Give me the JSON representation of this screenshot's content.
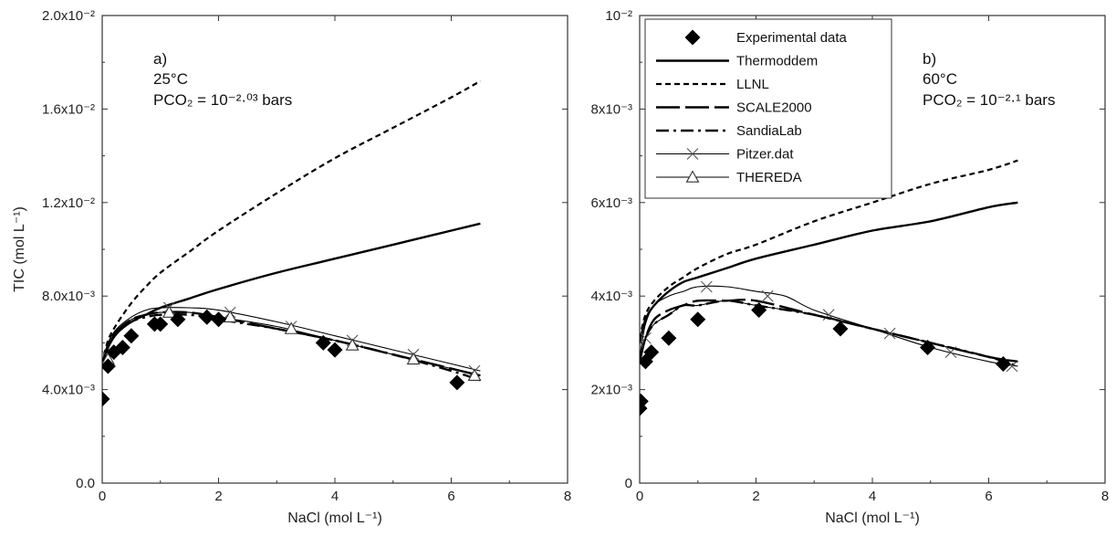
{
  "chart_data": [
    {
      "type": "line",
      "panel": "left",
      "xlabel": "NaCl (mol L⁻¹)",
      "ylabel": "TIC (mol L⁻¹)",
      "xlim": [
        0,
        8
      ],
      "ylim": [
        0,
        0.02
      ],
      "x_ticks": [
        0,
        2,
        4,
        6,
        8
      ],
      "x_tick_labels": [
        "0",
        "2",
        "4",
        "6",
        "8"
      ],
      "y_ticks": [
        0,
        0.004,
        0.008,
        0.012,
        0.016,
        0.02
      ],
      "y_tick_labels": [
        "0.0",
        "4.0x10⁻³",
        "8.0x10⁻³",
        "1.2x10⁻²",
        "1.6x10⁻²",
        "2.0x10⁻²"
      ],
      "annotations": {
        "label": "a)",
        "temperature": "25°C",
        "pco2": "PCO₂ = 10⁻²·⁰³ bars"
      },
      "series": [
        {
          "name": "Experimental data",
          "style": "diamond",
          "x": [
            0.0,
            0.1,
            0.2,
            0.35,
            0.5,
            0.9,
            1.0,
            1.3,
            1.8,
            2.0,
            3.8,
            4.0,
            6.1
          ],
          "y": [
            0.0036,
            0.005,
            0.0056,
            0.0058,
            0.0063,
            0.0068,
            0.0068,
            0.007,
            0.0071,
            0.007,
            0.006,
            0.0057,
            0.0043
          ]
        },
        {
          "name": "Thermoddem",
          "style": "solid-thick",
          "x": [
            0.0,
            0.1,
            0.25,
            0.5,
            0.75,
            1.0,
            1.5,
            2.0,
            3.0,
            4.0,
            5.0,
            6.0,
            6.5
          ],
          "y": [
            0.0051,
            0.0058,
            0.0064,
            0.0069,
            0.0072,
            0.0075,
            0.0079,
            0.0083,
            0.009,
            0.0096,
            0.0102,
            0.0108,
            0.0111
          ]
        },
        {
          "name": "LLNL",
          "style": "dashed",
          "x": [
            0.0,
            0.1,
            0.25,
            0.5,
            0.75,
            1.0,
            1.5,
            2.0,
            3.0,
            4.0,
            5.0,
            6.0,
            6.5
          ],
          "y": [
            0.0051,
            0.0061,
            0.0068,
            0.0077,
            0.0084,
            0.009,
            0.0099,
            0.0108,
            0.0124,
            0.0139,
            0.0152,
            0.0165,
            0.0172
          ]
        },
        {
          "name": "SCALE2000",
          "style": "long-dash",
          "x": [
            0.0,
            0.1,
            0.25,
            0.5,
            0.75,
            1.0,
            1.5,
            2.0,
            3.0,
            4.0,
            5.0,
            6.0,
            6.5
          ],
          "y": [
            0.0051,
            0.0059,
            0.0065,
            0.007,
            0.0072,
            0.0073,
            0.0073,
            0.0071,
            0.0066,
            0.0061,
            0.0055,
            0.0049,
            0.0046
          ]
        },
        {
          "name": "SandiaLab",
          "style": "dash-dot",
          "x": [
            0.0,
            0.1,
            0.25,
            0.5,
            0.75,
            1.0,
            1.5,
            2.0,
            3.0,
            4.0,
            5.0,
            6.0,
            6.5
          ],
          "y": [
            0.005,
            0.0058,
            0.0064,
            0.0069,
            0.0071,
            0.0072,
            0.0072,
            0.007,
            0.0066,
            0.0061,
            0.0055,
            0.0048,
            0.0044
          ]
        },
        {
          "name": "Pitzer.dat",
          "style": "thin-x",
          "x": [
            0.0,
            0.1,
            0.25,
            0.5,
            0.75,
            1.0,
            1.5,
            2.0,
            3.0,
            4.0,
            5.0,
            6.0,
            6.5
          ],
          "y": [
            0.0051,
            0.006,
            0.0066,
            0.0071,
            0.0074,
            0.0075,
            0.0075,
            0.0074,
            0.0069,
            0.0063,
            0.0057,
            0.0051,
            0.0048
          ],
          "marker_x": [
            0.1,
            1.15,
            2.2,
            3.25,
            4.3,
            5.35,
            6.4
          ],
          "marker_y": [
            0.0054,
            0.0075,
            0.0073,
            0.0067,
            0.0061,
            0.0055,
            0.0048
          ]
        },
        {
          "name": "THEREDA",
          "style": "thin-triangle",
          "x": [
            0.0,
            0.1,
            0.25,
            0.5,
            0.75,
            1.0,
            1.5,
            2.0,
            3.0,
            4.0,
            5.0,
            6.0,
            6.5
          ],
          "y": [
            0.005,
            0.0059,
            0.0065,
            0.007,
            0.0072,
            0.0073,
            0.0073,
            0.0071,
            0.0067,
            0.0061,
            0.0055,
            0.0049,
            0.0046
          ],
          "marker_x": [
            0.1,
            1.15,
            2.2,
            3.25,
            4.3,
            5.35,
            6.4
          ],
          "marker_y": [
            0.0053,
            0.0073,
            0.0071,
            0.0066,
            0.0059,
            0.0053,
            0.0046
          ]
        }
      ]
    },
    {
      "type": "line",
      "panel": "right",
      "xlabel": "NaCl (mol L⁻¹)",
      "ylabel": "",
      "xlim": [
        0,
        8
      ],
      "ylim": [
        0,
        0.01
      ],
      "x_ticks": [
        0,
        2,
        4,
        6,
        8
      ],
      "x_tick_labels": [
        "0",
        "2",
        "4",
        "6",
        "8"
      ],
      "y_ticks": [
        0,
        0.002,
        0.004,
        0.006,
        0.008,
        0.01
      ],
      "y_tick_labels": [
        "0",
        "2x10⁻³",
        "4x10⁻³",
        "6x10⁻³",
        "8x10⁻³",
        "10⁻²"
      ],
      "annotations": {
        "label": "b)",
        "temperature": "60°C",
        "pco2": "PCO₂ = 10⁻²·¹ bars"
      },
      "legend": {
        "placement": "top-left",
        "entries": [
          "Experimental data",
          "Thermoddem",
          "LLNL",
          "SCALE2000",
          "SandiaLab",
          "Pitzer.dat",
          "THEREDA"
        ]
      },
      "series": [
        {
          "name": "Experimental data",
          "style": "diamond",
          "x": [
            0.0,
            0.02,
            0.1,
            0.2,
            0.5,
            1.0,
            2.05,
            3.45,
            4.95,
            6.25
          ],
          "y": [
            0.0016,
            0.00175,
            0.0026,
            0.0028,
            0.0031,
            0.0035,
            0.0037,
            0.0033,
            0.0029,
            0.00255
          ]
        },
        {
          "name": "Thermoddem",
          "style": "solid-thick",
          "x": [
            0.0,
            0.1,
            0.25,
            0.5,
            0.75,
            1.0,
            1.5,
            2.0,
            3.0,
            4.0,
            5.0,
            6.0,
            6.5
          ],
          "y": [
            0.003,
            0.0035,
            0.0038,
            0.0041,
            0.0043,
            0.0044,
            0.0046,
            0.0048,
            0.0051,
            0.0054,
            0.0056,
            0.0059,
            0.006
          ]
        },
        {
          "name": "LLNL",
          "style": "dashed",
          "x": [
            0.0,
            0.1,
            0.25,
            0.5,
            0.75,
            1.0,
            1.5,
            2.0,
            3.0,
            4.0,
            5.0,
            6.0,
            6.5
          ],
          "y": [
            0.0031,
            0.0036,
            0.0039,
            0.0042,
            0.0044,
            0.0046,
            0.0049,
            0.0051,
            0.0056,
            0.006,
            0.0064,
            0.0067,
            0.0069
          ]
        },
        {
          "name": "SCALE2000",
          "style": "long-dash",
          "x": [
            0.0,
            0.1,
            0.25,
            0.5,
            0.75,
            1.0,
            1.5,
            2.0,
            3.0,
            4.0,
            5.0,
            6.0,
            6.5
          ],
          "y": [
            0.0026,
            0.0031,
            0.0035,
            0.0037,
            0.0038,
            0.0039,
            0.0039,
            0.0039,
            0.0036,
            0.0033,
            0.003,
            0.0027,
            0.0026
          ]
        },
        {
          "name": "SandiaLab",
          "style": "dash-dot",
          "x": [
            0.0,
            0.1,
            0.25,
            0.5,
            0.75,
            1.0,
            1.5,
            2.0,
            3.0,
            4.0,
            5.0,
            6.0,
            6.5
          ],
          "y": [
            0.0026,
            0.0031,
            0.0034,
            0.0036,
            0.0038,
            0.0038,
            0.0039,
            0.0038,
            0.0036,
            0.0033,
            0.003,
            0.0027,
            0.0025
          ]
        },
        {
          "name": "Pitzer.dat",
          "style": "thin-x",
          "x": [
            0.0,
            0.1,
            0.25,
            0.5,
            0.75,
            1.0,
            1.5,
            2.0,
            2.5,
            3.0,
            4.0,
            5.0,
            6.0,
            6.5
          ],
          "y": [
            0.0027,
            0.0034,
            0.0038,
            0.004,
            0.0041,
            0.0042,
            0.0042,
            0.0041,
            0.004,
            0.0037,
            0.0033,
            0.0029,
            0.0026,
            0.0025
          ],
          "marker_x": [
            0.1,
            1.15,
            2.2,
            3.25,
            4.3,
            5.35,
            6.4
          ],
          "marker_y": [
            0.0031,
            0.0042,
            0.004,
            0.0036,
            0.0032,
            0.0028,
            0.0025
          ]
        },
        {
          "name": "THEREDA",
          "style": "thin-triangle",
          "x": [
            0.0,
            0.1,
            0.25,
            0.5,
            0.75,
            1.0,
            1.5,
            2.0,
            3.0,
            4.0,
            5.0,
            6.0,
            6.5
          ],
          "y": [
            0.0026,
            0.0031,
            0.0034,
            0.0036,
            0.0038,
            0.0038,
            0.0039,
            0.0038,
            0.0036,
            0.0033,
            0.003,
            0.0027,
            0.0026
          ],
          "marker_x": [],
          "marker_y": []
        }
      ]
    }
  ]
}
